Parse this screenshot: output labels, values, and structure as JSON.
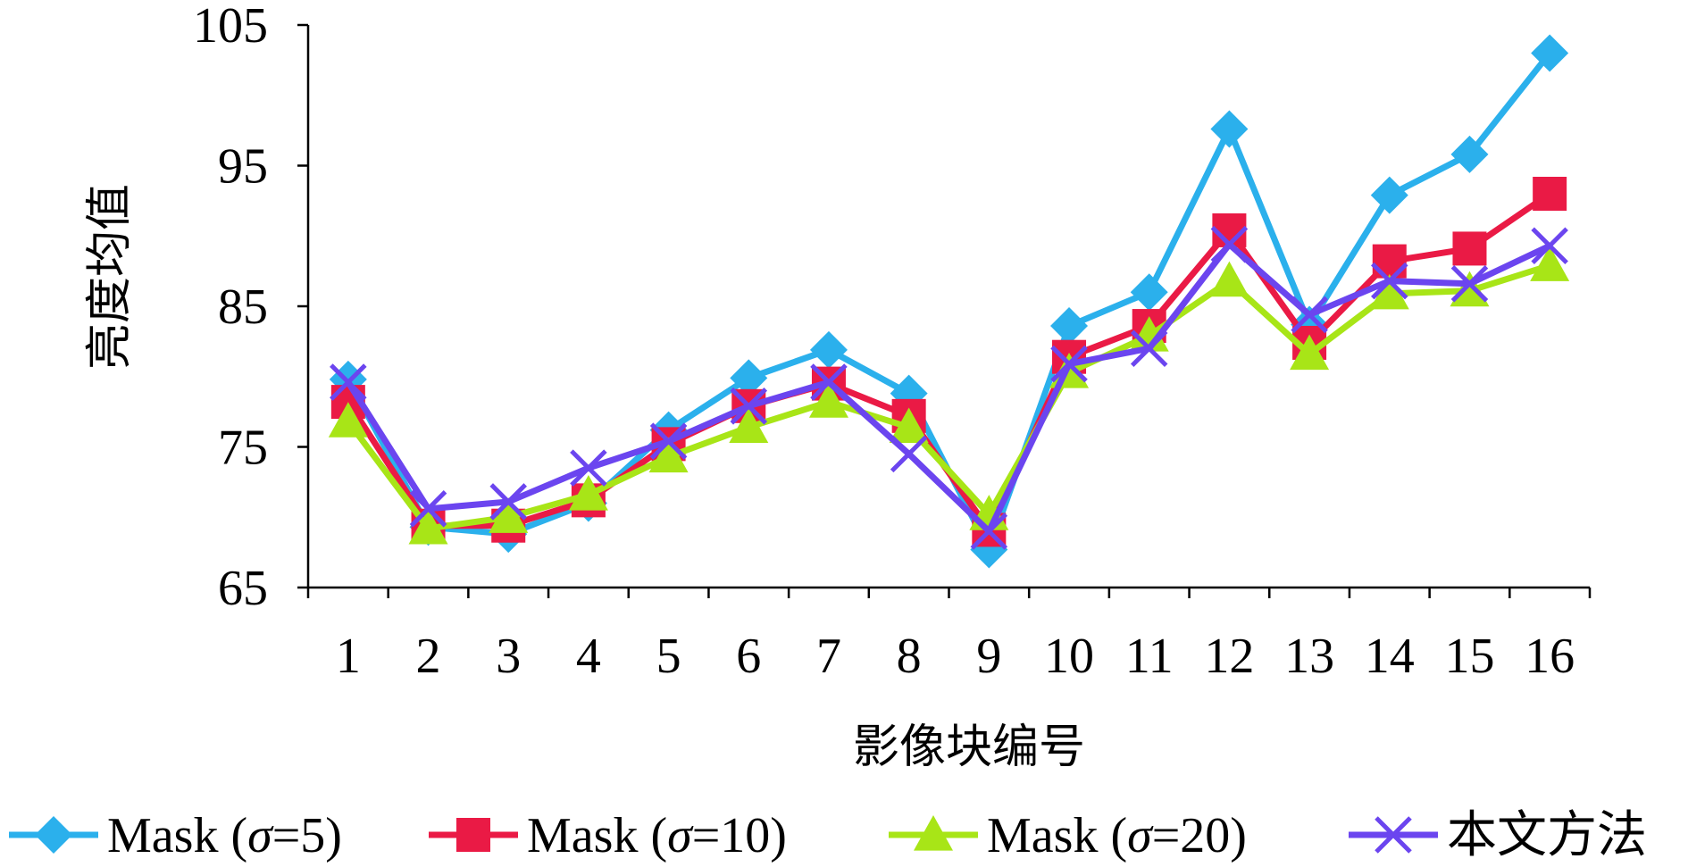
{
  "chart_data": {
    "type": "line",
    "title": "",
    "xlabel": "影像块编号",
    "ylabel": "亮度均值",
    "categories": [
      "1",
      "2",
      "3",
      "4",
      "5",
      "6",
      "7",
      "8",
      "9",
      "10",
      "11",
      "12",
      "13",
      "14",
      "15",
      "16"
    ],
    "ylim": [
      65,
      105
    ],
    "yticks": [
      "65",
      "75",
      "85",
      "95",
      "105"
    ],
    "grid": false,
    "legend_position": "bottom",
    "series": [
      {
        "name": "Mask (σ=5)",
        "legend_prefix": "Mask (",
        "legend_sigma": "σ",
        "legend_suffix": "=5)",
        "color": "#2bb0ec",
        "marker": "diamond",
        "values": [
          79.8,
          69.3,
          68.8,
          71.0,
          76.2,
          79.9,
          81.9,
          78.8,
          67.7,
          83.6,
          86.0,
          97.6,
          83.7,
          92.9,
          95.8,
          103.0
        ]
      },
      {
        "name": "Mask (σ=10)",
        "legend_prefix": "Mask (",
        "legend_sigma": "σ",
        "legend_suffix": "=10)",
        "color": "#ea1a45",
        "marker": "square",
        "values": [
          78.2,
          69.4,
          69.4,
          71.2,
          75.2,
          77.9,
          79.5,
          77.2,
          69.1,
          81.4,
          83.6,
          90.4,
          82.4,
          88.2,
          89.1,
          93.0
        ]
      },
      {
        "name": "Mask (σ=20)",
        "legend_prefix": "Mask (",
        "legend_sigma": "σ",
        "legend_suffix": "=20)",
        "color": "#a8e517",
        "marker": "triangle",
        "values": [
          76.8,
          69.2,
          70.0,
          71.6,
          74.3,
          76.4,
          78.2,
          76.4,
          70.2,
          80.3,
          82.9,
          86.8,
          81.6,
          85.9,
          86.1,
          87.9
        ]
      },
      {
        "name": "本文方法",
        "legend_prefix": "本文方法",
        "legend_sigma": "",
        "legend_suffix": "",
        "color": "#6b45ef",
        "marker": "x",
        "values": [
          79.6,
          70.6,
          71.1,
          73.5,
          75.4,
          77.9,
          79.6,
          74.5,
          69.0,
          80.9,
          82.0,
          89.4,
          84.4,
          86.8,
          86.6,
          89.3
        ]
      }
    ]
  }
}
